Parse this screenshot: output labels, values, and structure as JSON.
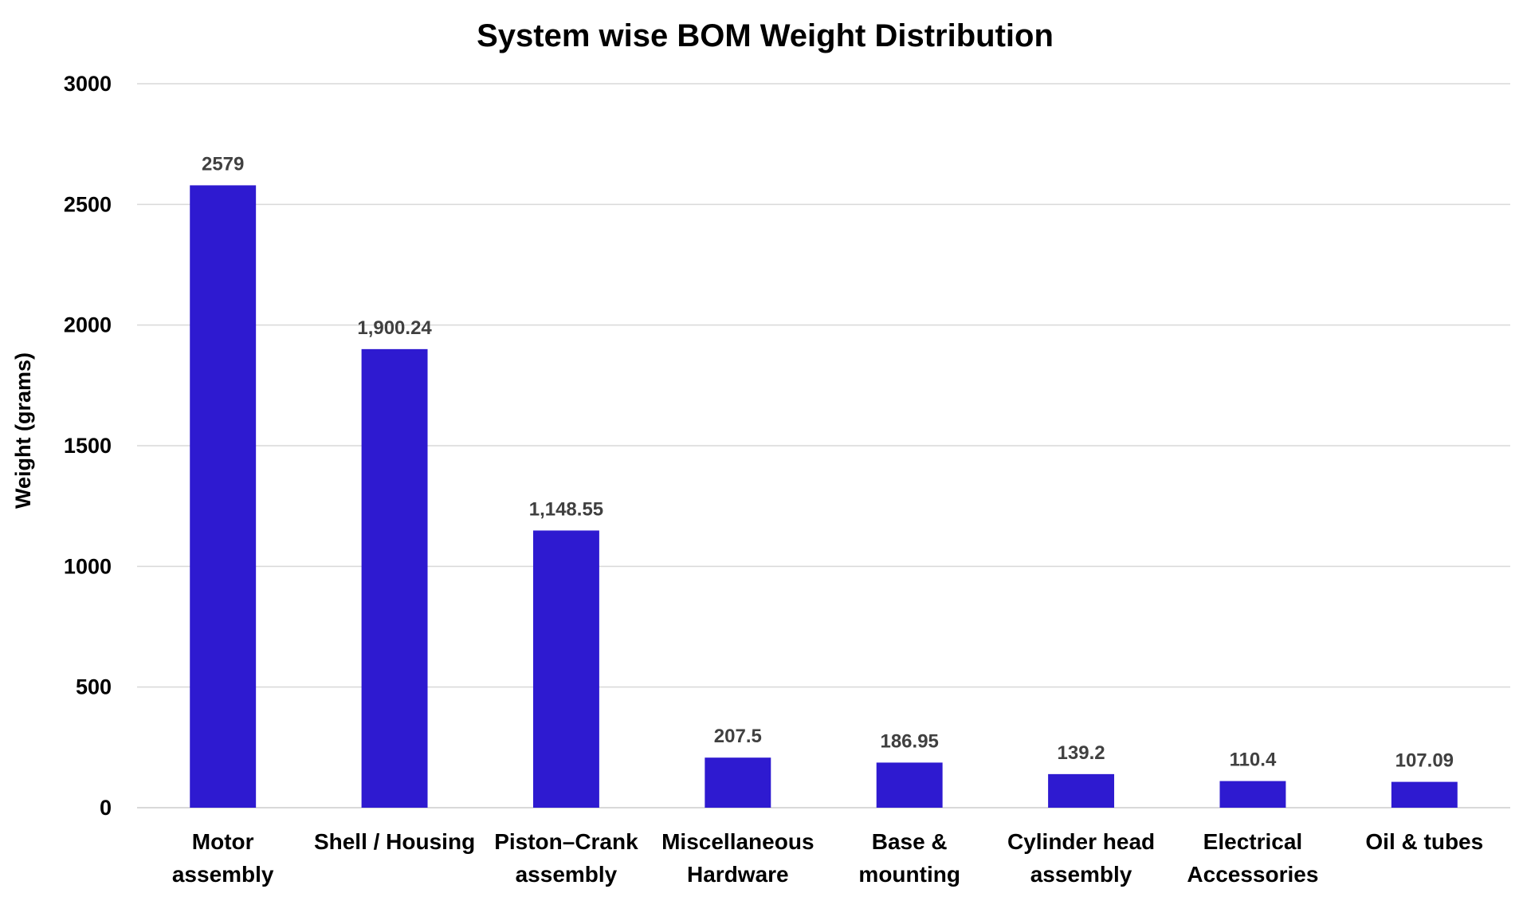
{
  "chart_data": {
    "type": "bar",
    "title": "System wise BOM Weight Distribution",
    "xlabel": "",
    "ylabel": "Weight (grams)",
    "ylim": [
      0,
      3000
    ],
    "yticks": [
      0,
      500,
      1000,
      1500,
      2000,
      2500,
      3000
    ],
    "grid": true,
    "legend": "none",
    "bar_color": "#2E1AD0",
    "categories": [
      [
        "Motor",
        "assembly"
      ],
      [
        "Shell / Housing"
      ],
      [
        "Piston–Crank",
        "assembly"
      ],
      [
        "Miscellaneous",
        "Hardware"
      ],
      [
        "Base &",
        "mounting"
      ],
      [
        "Cylinder head",
        "assembly"
      ],
      [
        "Electrical",
        "Accessories"
      ],
      [
        "Oil & tubes"
      ]
    ],
    "values": [
      2579,
      1900.24,
      1148.55,
      207.5,
      186.95,
      139.2,
      110.4,
      107.09
    ],
    "data_labels": [
      "2579",
      "1,900.24",
      "1,148.55",
      "207.5",
      "186.95",
      "139.2",
      "110.4",
      "107.09"
    ]
  }
}
